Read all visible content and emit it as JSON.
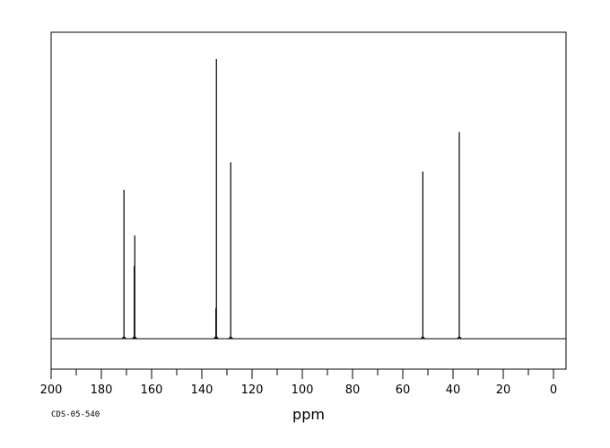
{
  "chart_data": {
    "type": "line",
    "title": "",
    "xlabel": "ppm",
    "ylabel": "",
    "footnote": "CDS-05-540",
    "x_range": [
      200,
      -5
    ],
    "x_reversed": true,
    "y_range": [
      0,
      1.0
    ],
    "grid": false,
    "x_ticks": [
      200,
      180,
      160,
      140,
      120,
      100,
      80,
      60,
      40,
      20,
      0
    ],
    "x_tick_labels": [
      "200",
      "180",
      "160",
      "140",
      "120",
      "100",
      "80",
      "60",
      "40",
      "20",
      "0"
    ],
    "series": [
      {
        "peaks": [
          {
            "ppm": 171.0,
            "intensity": 0.49
          },
          {
            "ppm": 166.9,
            "intensity": 0.24
          },
          {
            "ppm": 166.7,
            "intensity": 0.34
          },
          {
            "ppm": 134.4,
            "intensity": 0.1
          },
          {
            "ppm": 134.2,
            "intensity": 0.92
          },
          {
            "ppm": 128.5,
            "intensity": 0.58
          },
          {
            "ppm": 52.0,
            "intensity": 0.55
          },
          {
            "ppm": 37.5,
            "intensity": 0.68
          }
        ]
      }
    ]
  }
}
